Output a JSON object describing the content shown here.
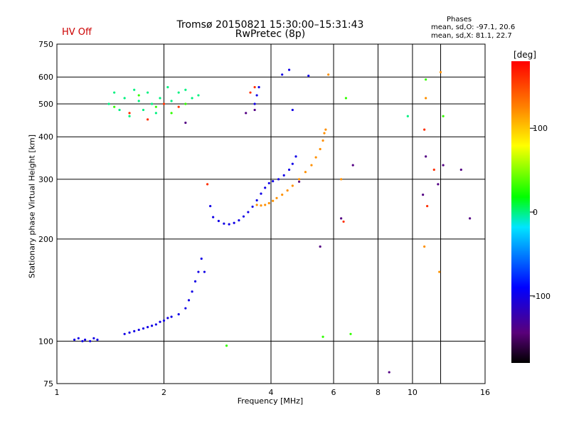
{
  "header": {
    "title": "Tromsø 20150821 15:30:00–15:31:43",
    "subtitle": "RwPretec (8p)",
    "hv_status": "HV Off",
    "phases_title": "Phases",
    "phases_o": "mean, sd,O: -97.1, 20.6",
    "phases_x": "mean, sd,X: 81.1, 22.7"
  },
  "colors": {
    "hv_status": "#cc0000",
    "grid": "#000000",
    "trace_blue": "#1f3fe0",
    "trace_yellow": "#f0e000"
  },
  "chart_data": {
    "type": "scatter",
    "title": "Tromsø 20150821 15:30:00–15:31:43",
    "subtitle": "RwPretec (8p)",
    "xlabel": "Frequency [MHz]",
    "ylabel": "Stationary phase Virtual Height [km]",
    "xscale": "log",
    "yscale": "log",
    "xlim": [
      1,
      16
    ],
    "ylim": [
      75,
      750
    ],
    "xticks": [
      1,
      2,
      4,
      6,
      8,
      10,
      16
    ],
    "yticks": [
      75,
      100,
      200,
      300,
      400,
      500,
      600,
      750
    ],
    "grid": true,
    "colorbar": {
      "label": "[deg]",
      "ticks": [
        100,
        0,
        -100
      ],
      "range": [
        -180,
        180
      ],
      "colormap": "rainbow"
    },
    "series": [
      {
        "color_value": -100,
        "points": [
          [
            1.12,
            101
          ],
          [
            1.15,
            102
          ],
          [
            1.18,
            100
          ],
          [
            1.2,
            101
          ],
          [
            1.24,
            100
          ],
          [
            1.27,
            102
          ],
          [
            1.3,
            101
          ],
          [
            1.55,
            105
          ],
          [
            1.6,
            106
          ],
          [
            1.65,
            107
          ],
          [
            1.7,
            108
          ],
          [
            1.75,
            109
          ],
          [
            1.8,
            110
          ],
          [
            1.85,
            111
          ],
          [
            1.9,
            112
          ],
          [
            1.95,
            114
          ],
          [
            2.0,
            115
          ],
          [
            2.05,
            117
          ],
          [
            2.1,
            118
          ],
          [
            2.2,
            120
          ],
          [
            2.3,
            125
          ],
          [
            2.35,
            132
          ],
          [
            2.4,
            140
          ],
          [
            2.45,
            150
          ],
          [
            2.5,
            160
          ],
          [
            2.55,
            175
          ],
          [
            2.6,
            160
          ],
          [
            2.7,
            250
          ],
          [
            2.75,
            232
          ],
          [
            2.85,
            226
          ],
          [
            2.95,
            222
          ],
          [
            3.05,
            221
          ],
          [
            3.15,
            223
          ],
          [
            3.25,
            227
          ],
          [
            3.35,
            233
          ],
          [
            3.45,
            240
          ],
          [
            3.55,
            249
          ],
          [
            3.65,
            260
          ],
          [
            3.75,
            272
          ],
          [
            3.85,
            283
          ],
          [
            3.95,
            292
          ],
          [
            4.05,
            296
          ],
          [
            4.2,
            300
          ],
          [
            4.35,
            308
          ],
          [
            4.5,
            320
          ],
          [
            4.6,
            333
          ],
          [
            4.7,
            350
          ],
          [
            3.6,
            500
          ],
          [
            3.65,
            530
          ],
          [
            3.7,
            560
          ],
          [
            4.3,
            610
          ],
          [
            4.5,
            630
          ],
          [
            5.1,
            605
          ],
          [
            4.6,
            480
          ]
        ]
      },
      {
        "color_value": 120,
        "points": [
          [
            3.65,
            252
          ],
          [
            3.75,
            251
          ],
          [
            3.85,
            252
          ],
          [
            3.95,
            255
          ],
          [
            4.05,
            259
          ],
          [
            4.15,
            264
          ],
          [
            4.3,
            270
          ],
          [
            4.45,
            278
          ],
          [
            4.6,
            287
          ],
          [
            4.8,
            300
          ],
          [
            5.0,
            315
          ],
          [
            5.2,
            330
          ],
          [
            5.35,
            348
          ],
          [
            5.5,
            368
          ],
          [
            5.6,
            390
          ],
          [
            5.65,
            410
          ],
          [
            5.7,
            420
          ],
          [
            5.8,
            610
          ],
          [
            6.3,
            300
          ],
          [
            10.9,
            520
          ],
          [
            12.0,
            620
          ],
          [
            11.9,
            160
          ],
          [
            10.8,
            190
          ]
        ]
      },
      {
        "color_value": 0,
        "points": [
          [
            1.4,
            500
          ],
          [
            1.45,
            540
          ],
          [
            1.5,
            480
          ],
          [
            1.55,
            520
          ],
          [
            1.6,
            460
          ],
          [
            1.65,
            550
          ],
          [
            1.7,
            510
          ],
          [
            1.75,
            480
          ],
          [
            1.8,
            540
          ],
          [
            1.85,
            500
          ],
          [
            1.9,
            470
          ],
          [
            1.95,
            520
          ],
          [
            2.05,
            560
          ],
          [
            2.1,
            510
          ],
          [
            2.2,
            540
          ],
          [
            2.3,
            550
          ],
          [
            2.4,
            520
          ],
          [
            2.5,
            530
          ],
          [
            9.7,
            460
          ]
        ]
      },
      {
        "color_value": 160,
        "points": [
          [
            1.6,
            470
          ],
          [
            1.8,
            450
          ],
          [
            2.0,
            500
          ],
          [
            2.2,
            490
          ],
          [
            3.5,
            540
          ],
          [
            3.6,
            560
          ],
          [
            2.65,
            290
          ],
          [
            6.4,
            225
          ],
          [
            10.8,
            420
          ],
          [
            11.5,
            320
          ],
          [
            11.0,
            250
          ]
        ]
      },
      {
        "color_value": 30,
        "points": [
          [
            1.45,
            490
          ],
          [
            1.7,
            530
          ],
          [
            1.9,
            490
          ],
          [
            2.1,
            470
          ],
          [
            2.3,
            500
          ],
          [
            3.0,
            97
          ],
          [
            6.5,
            520
          ],
          [
            10.9,
            590
          ],
          [
            6.7,
            105
          ],
          [
            5.6,
            103
          ],
          [
            12.2,
            460
          ]
        ]
      },
      {
        "color_value": -140,
        "points": [
          [
            2.3,
            440
          ],
          [
            3.4,
            470
          ],
          [
            3.6,
            480
          ],
          [
            4.8,
            295
          ],
          [
            6.3,
            230
          ],
          [
            6.8,
            330
          ],
          [
            8.6,
            81
          ],
          [
            10.9,
            350
          ],
          [
            12.2,
            330
          ],
          [
            13.7,
            320
          ],
          [
            14.5,
            230
          ],
          [
            11.8,
            290
          ],
          [
            10.7,
            270
          ],
          [
            5.5,
            190
          ]
        ]
      }
    ]
  }
}
